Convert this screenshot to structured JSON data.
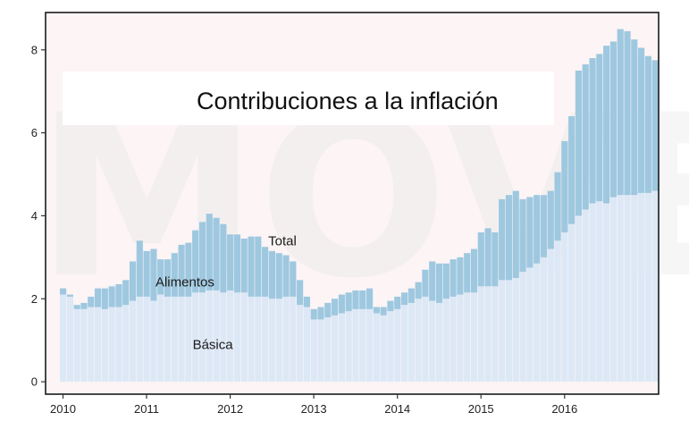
{
  "chart_data": {
    "type": "area",
    "stacked": true,
    "title": "Contribuciones a la inflación",
    "watermark": "MOVE",
    "xlabel": "",
    "ylabel": "",
    "x_start": "2010-01",
    "x_ticks": [
      {
        "label": "2010",
        "x": "2010-01"
      },
      {
        "label": "2011",
        "x": "2011-01"
      },
      {
        "label": "2012",
        "x": "2012-01"
      },
      {
        "label": "2013",
        "x": "2013-01"
      },
      {
        "label": "2014",
        "x": "2014-01"
      },
      {
        "label": "2015",
        "x": "2015-01"
      },
      {
        "label": "2016",
        "x": "2016-01"
      }
    ],
    "y_ticks": [
      "0",
      "2",
      "4",
      "6",
      "8"
    ],
    "ylim": [
      -0.3,
      8.9
    ],
    "grid": false,
    "series": [
      {
        "name": "Básica",
        "color": "#dde8f6",
        "values": [
          2.1,
          2.05,
          1.75,
          1.75,
          1.8,
          1.8,
          1.75,
          1.8,
          1.8,
          1.85,
          1.95,
          2.05,
          2.05,
          1.95,
          2.1,
          2.05,
          2.05,
          2.05,
          2.05,
          2.15,
          2.15,
          2.2,
          2.2,
          2.15,
          2.2,
          2.15,
          2.15,
          2.05,
          2.05,
          2.05,
          2.0,
          2.0,
          2.05,
          2.05,
          1.85,
          1.8,
          1.5,
          1.5,
          1.55,
          1.6,
          1.65,
          1.7,
          1.75,
          1.75,
          1.75,
          1.65,
          1.6,
          1.7,
          1.75,
          1.85,
          1.9,
          2.0,
          2.05,
          1.95,
          1.9,
          2.0,
          2.05,
          2.1,
          2.15,
          2.15,
          2.3,
          2.3,
          2.3,
          2.45,
          2.45,
          2.5,
          2.65,
          2.75,
          2.85,
          3.0,
          3.2,
          3.4,
          3.6,
          3.8,
          4.0,
          4.15,
          4.3,
          4.35,
          4.3,
          4.45,
          4.5,
          4.5,
          4.5,
          4.55,
          4.55,
          4.6
        ]
      },
      {
        "name": "Alimentos",
        "color": "#9ec8e0",
        "values": [
          0.15,
          0.05,
          0.1,
          0.15,
          0.25,
          0.45,
          0.5,
          0.5,
          0.55,
          0.6,
          0.95,
          1.35,
          1.1,
          1.25,
          0.85,
          0.9,
          1.05,
          1.25,
          1.3,
          1.5,
          1.7,
          1.85,
          1.75,
          1.65,
          1.35,
          1.4,
          1.3,
          1.45,
          1.45,
          1.2,
          1.15,
          1.1,
          1.0,
          0.85,
          0.6,
          0.25,
          0.25,
          0.3,
          0.35,
          0.4,
          0.45,
          0.45,
          0.45,
          0.45,
          0.5,
          0.15,
          0.2,
          0.25,
          0.3,
          0.3,
          0.35,
          0.4,
          0.65,
          0.95,
          0.95,
          0.85,
          0.9,
          0.9,
          0.95,
          1.05,
          1.3,
          1.4,
          1.3,
          1.95,
          2.05,
          2.1,
          1.75,
          1.7,
          1.65,
          1.5,
          1.4,
          1.65,
          2.2,
          2.6,
          3.5,
          3.5,
          3.5,
          3.55,
          3.8,
          3.75,
          4.0,
          3.95,
          3.75,
          3.5,
          3.3,
          3.15
        ]
      }
    ],
    "annotations": [
      {
        "text": "Total",
        "x": "2012-09",
        "y": 3.4
      },
      {
        "text": "Alimentos",
        "x": "2011-07",
        "y": 2.4
      },
      {
        "text": "Básica",
        "x": "2011-11",
        "y": 0.9
      }
    ],
    "axis_range_x": [
      "2009-11",
      "2017-03"
    ]
  }
}
